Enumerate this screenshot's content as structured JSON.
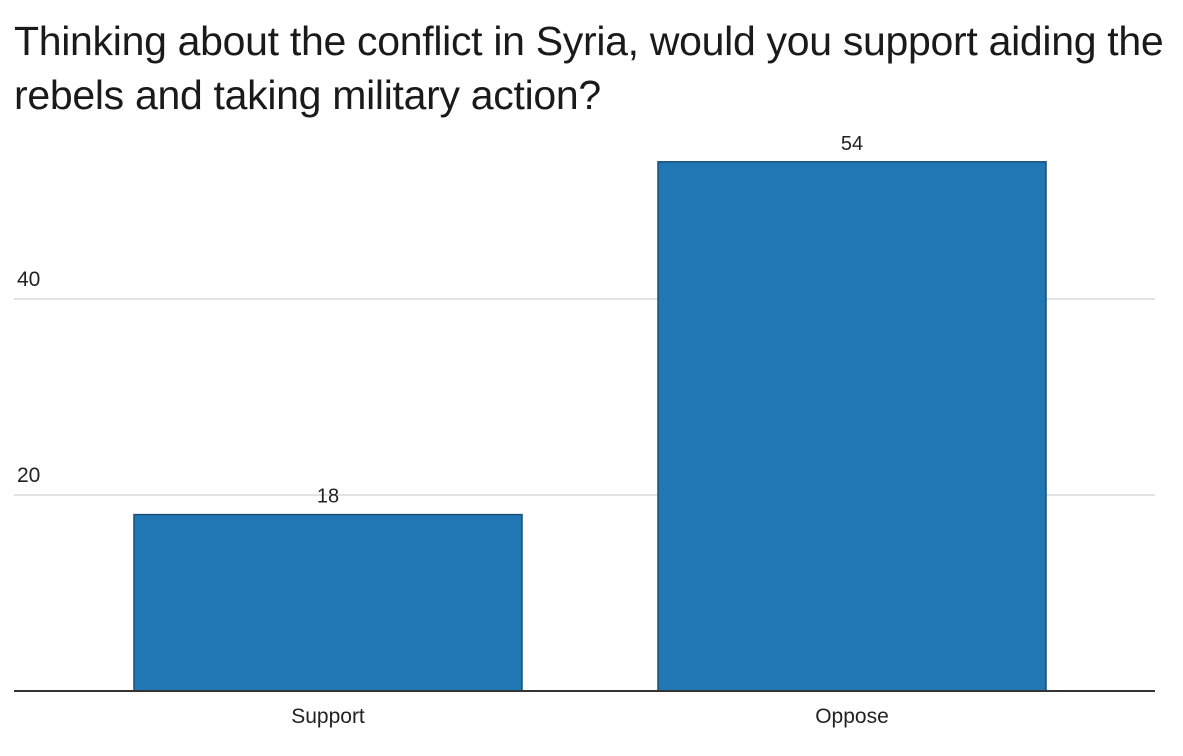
{
  "chart_data": {
    "type": "bar",
    "title": "Thinking about the conflict in Syria, would you support aiding the rebels and taking military action?",
    "categories": [
      "Support",
      "Oppose"
    ],
    "values": [
      18,
      54
    ],
    "ylim": [
      0,
      60
    ],
    "yticks": [
      20,
      40
    ],
    "ytick_labels": [
      "20",
      "40"
    ],
    "data_labels": [
      "18",
      "54"
    ],
    "xlabel": "",
    "ylabel": "",
    "grid": true,
    "legend": "none",
    "colors": {
      "bar_fill": "#2077b4",
      "bar_stroke": "#1b4f78",
      "gridline": "#d9d9d9",
      "baseline": "#333333",
      "text": "#222222"
    }
  }
}
